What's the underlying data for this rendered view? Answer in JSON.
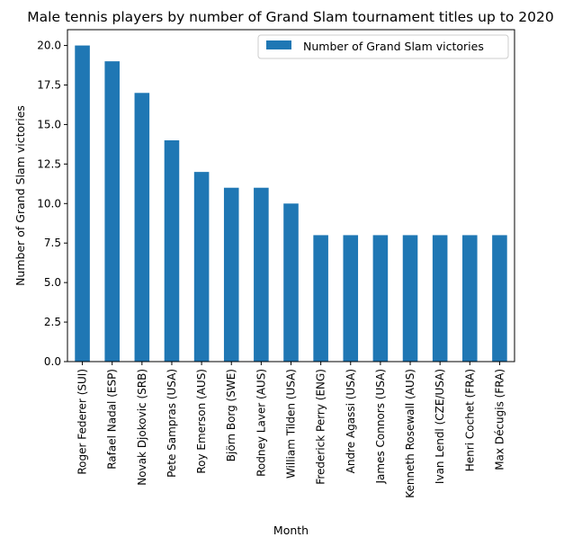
{
  "chart_data": {
    "type": "bar",
    "title": "Male tennis players by number of Grand Slam tournament titles up to 2020",
    "xlabel": "Month",
    "ylabel": "Number of Grand Slam victories",
    "categories": [
      "Roger Federer (SUI)",
      "Rafael Nadal (ESP)",
      "Novak Djokovic (SRB)",
      "Pete Sampras (USA)",
      "Roy Emerson (AUS)",
      "Björn Borg (SWE)",
      "Rodney Laver (AUS)",
      "William Tilden (USA)",
      "Frederick Perry (ENG)",
      "Andre Agassi (USA)",
      "James Connors (USA)",
      "Kenneth Rosewall (AUS)",
      "Ivan Lendl (CZE/USA)",
      "Henri Cochet (FRA)",
      "Max Décugis (FRA)"
    ],
    "series": [
      {
        "name": "Number of Grand Slam victories",
        "color": "#1f77b4",
        "values": [
          20,
          19,
          17,
          14,
          12,
          11,
          11,
          10,
          8,
          8,
          8,
          8,
          8,
          8,
          8
        ]
      }
    ],
    "ylim": [
      0,
      21
    ],
    "yticks": [
      "0.0",
      "2.5",
      "5.0",
      "7.5",
      "10.0",
      "12.5",
      "15.0",
      "17.5",
      "20.0"
    ],
    "legend_position": "top-right",
    "grid": false
  }
}
